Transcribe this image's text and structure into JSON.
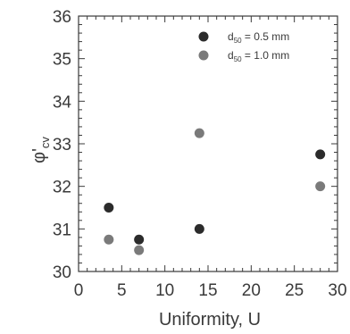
{
  "chart_data": {
    "type": "scatter",
    "xlabel": "Uniformity, U",
    "ylabel": "φ'",
    "ylabel_sub": "cv",
    "xlim": [
      0,
      30
    ],
    "ylim": [
      30,
      36
    ],
    "xticks": [
      0,
      5,
      10,
      15,
      20,
      25,
      30
    ],
    "yticks": [
      30,
      31,
      32,
      33,
      34,
      35,
      36
    ],
    "grid": false,
    "legend_position": "top-right",
    "series": [
      {
        "name": "d50 = 0.5 mm",
        "legend_main": "d",
        "legend_sub": "50",
        "legend_rest": " = 0.5 mm",
        "color": "#2b2b2b",
        "points": [
          {
            "x": 3.5,
            "y": 31.5
          },
          {
            "x": 7.0,
            "y": 30.75
          },
          {
            "x": 14.0,
            "y": 31.0
          },
          {
            "x": 28.0,
            "y": 32.75
          }
        ]
      },
      {
        "name": "d50 = 1.0 mm",
        "legend_main": "d",
        "legend_sub": "50",
        "legend_rest": " = 1.0 mm",
        "color": "#7a7a7a",
        "points": [
          {
            "x": 3.5,
            "y": 30.75
          },
          {
            "x": 7.0,
            "y": 30.5
          },
          {
            "x": 14.0,
            "y": 33.25
          },
          {
            "x": 28.0,
            "y": 32.0
          }
        ]
      }
    ]
  }
}
